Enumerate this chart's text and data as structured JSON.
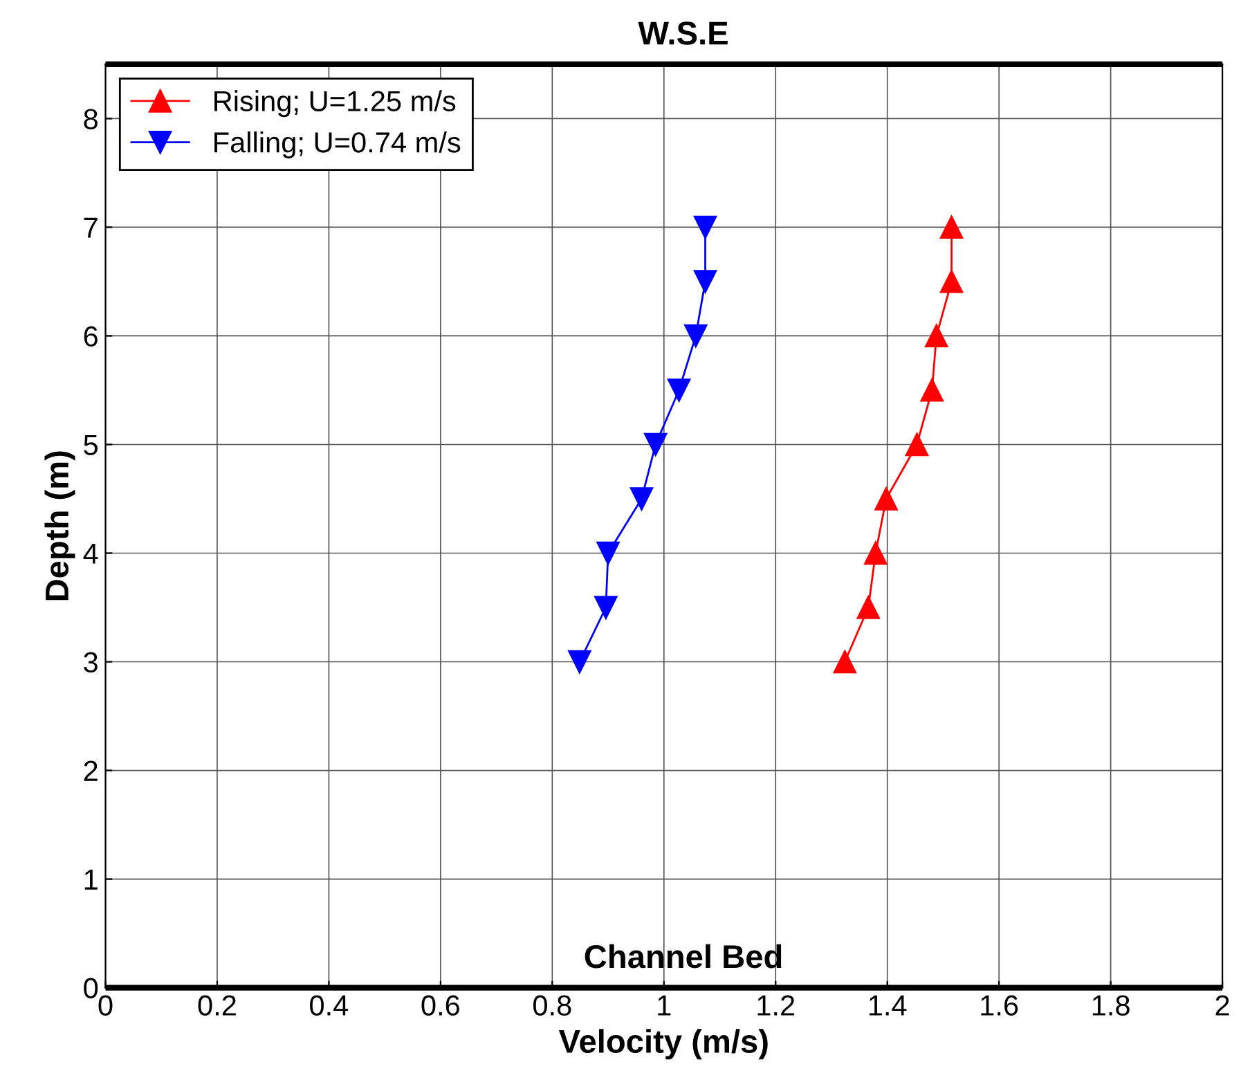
{
  "chart_data": {
    "type": "line",
    "xlabel": "Velocity (m/s)",
    "ylabel": "Depth (m)",
    "xlim": [
      0,
      2
    ],
    "xticks": [
      0,
      0.2,
      0.4,
      0.6,
      0.8,
      1,
      1.2,
      1.4,
      1.6,
      1.8,
      2
    ],
    "ylim": [
      0,
      8.5
    ],
    "yticks": [
      0,
      1,
      2,
      3,
      4,
      5,
      6,
      7,
      8
    ],
    "grid": true,
    "legend": "top left",
    "series": [
      {
        "name": "Rising; U=1.25 m/s",
        "color": "#ff0000",
        "marker": "triangle",
        "x": [
          1.324,
          1.366,
          1.379,
          1.398,
          1.453,
          1.48,
          1.488,
          1.515,
          1.515
        ],
        "values": [
          3,
          3.5,
          4,
          4.5,
          5,
          5.5,
          6,
          6.5,
          7
        ]
      },
      {
        "name": "Falling; U=0.74 m/s",
        "color": "#0000ff",
        "marker": "triangle_down",
        "x": [
          0.849,
          0.896,
          0.9,
          0.96,
          0.985,
          1.027,
          1.057,
          1.074,
          1.074
        ],
        "values": [
          3,
          3.5,
          4,
          4.5,
          5,
          5.5,
          6,
          6.5,
          7
        ]
      }
    ],
    "ref_lines": [
      {
        "axis": "y",
        "value": 0,
        "label": "Channel Bed",
        "color": "#000000"
      },
      {
        "axis": "y",
        "value": 8.5,
        "label": "W.S.E",
        "color": "#000000"
      }
    ]
  }
}
